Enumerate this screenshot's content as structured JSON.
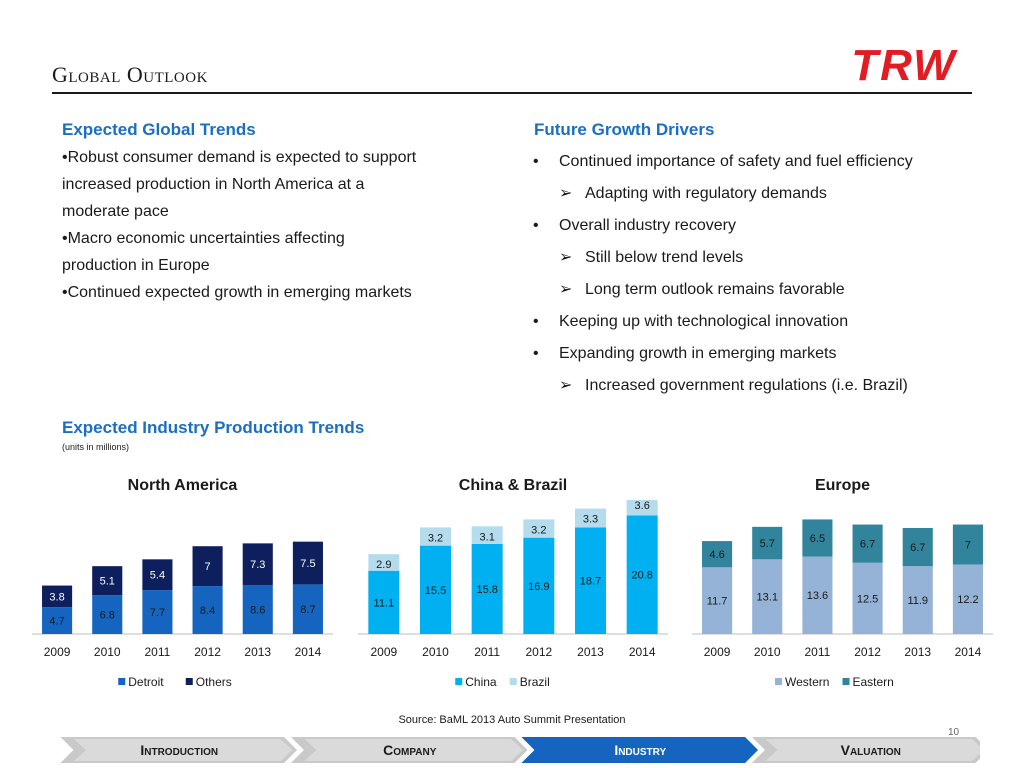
{
  "page": {
    "title": "Global Outlook",
    "source": "Source: BaML 2013 Auto Summit Presentation",
    "page_number": "10",
    "logo_text": "TRW"
  },
  "left_section": {
    "heading": "Expected Global Trends",
    "lines": [
      "•Robust consumer demand is expected to support",
      "increased production in North America at a",
      "moderate pace",
      "•Macro economic uncertainties affecting",
      "production in Europe",
      "•Continued expected growth in emerging markets"
    ]
  },
  "right_section": {
    "heading": "Future Growth Drivers",
    "items": [
      {
        "level": 1,
        "mark": "•",
        "text": "Continued importance of safety and fuel efficiency"
      },
      {
        "level": 2,
        "mark": "➢",
        "text": "Adapting with regulatory demands"
      },
      {
        "level": 1,
        "mark": "•",
        "text": "Overall industry recovery"
      },
      {
        "level": 2,
        "mark": "➢",
        "text": "Still below trend levels"
      },
      {
        "level": 2,
        "mark": "➢",
        "text": "Long term outlook remains favorable"
      },
      {
        "level": 1,
        "mark": "•",
        "text": "Keeping up with technological innovation"
      },
      {
        "level": 1,
        "mark": "•",
        "text": "Expanding growth in emerging markets"
      },
      {
        "level": 2,
        "mark": "➢",
        "text": "Increased government regulations (i.e. Brazil)"
      }
    ]
  },
  "production": {
    "heading": "Expected Industry Production Trends",
    "subheading": "(units in millions)"
  },
  "colors": {
    "heading_blue": "#1a6fc2",
    "logo_red": "#e31b23",
    "nav_active": "#1565c0",
    "nav_inactive": "#b5b5b5"
  },
  "chart_data": [
    {
      "type": "bar",
      "stacked": true,
      "title": "North America",
      "categories": [
        "2009",
        "2010",
        "2011",
        "2012",
        "2013",
        "2014"
      ],
      "series": [
        {
          "name": "Detroit",
          "color": "#1565c0",
          "values": [
            4.7,
            6.8,
            7.7,
            8.4,
            8.6,
            8.7
          ]
        },
        {
          "name": "Others",
          "color": "#0d1f5c",
          "values": [
            3.8,
            5.1,
            5.4,
            7,
            7.3,
            7.5
          ]
        }
      ],
      "legend": "bottom"
    },
    {
      "type": "bar",
      "stacked": true,
      "title": "China & Brazil",
      "categories": [
        "2009",
        "2010",
        "2011",
        "2012",
        "2013",
        "2014"
      ],
      "series": [
        {
          "name": "China",
          "color": "#00b0f0",
          "values": [
            11.1,
            15.5,
            15.8,
            16.9,
            18.7,
            20.8
          ]
        },
        {
          "name": "Brazil",
          "color": "#b4dcec",
          "values": [
            2.9,
            3.2,
            3.1,
            3.2,
            3.3,
            3.6
          ]
        }
      ],
      "legend": "bottom"
    },
    {
      "type": "bar",
      "stacked": true,
      "title": "Europe",
      "categories": [
        "2009",
        "2010",
        "2011",
        "2012",
        "2013",
        "2014"
      ],
      "series": [
        {
          "name": "Western",
          "color": "#95b3d7",
          "values": [
            11.7,
            13.1,
            13.6,
            12.5,
            11.9,
            12.2
          ]
        },
        {
          "name": "Eastern",
          "color": "#31849b",
          "values": [
            4.6,
            5.7,
            6.5,
            6.7,
            6.7,
            7
          ]
        }
      ],
      "legend": "bottom"
    }
  ],
  "nav": {
    "tabs": [
      {
        "label": "Introduction",
        "active": false
      },
      {
        "label": "Company",
        "active": false
      },
      {
        "label": "Industry",
        "active": true
      },
      {
        "label": "Valuation",
        "active": false
      }
    ]
  }
}
